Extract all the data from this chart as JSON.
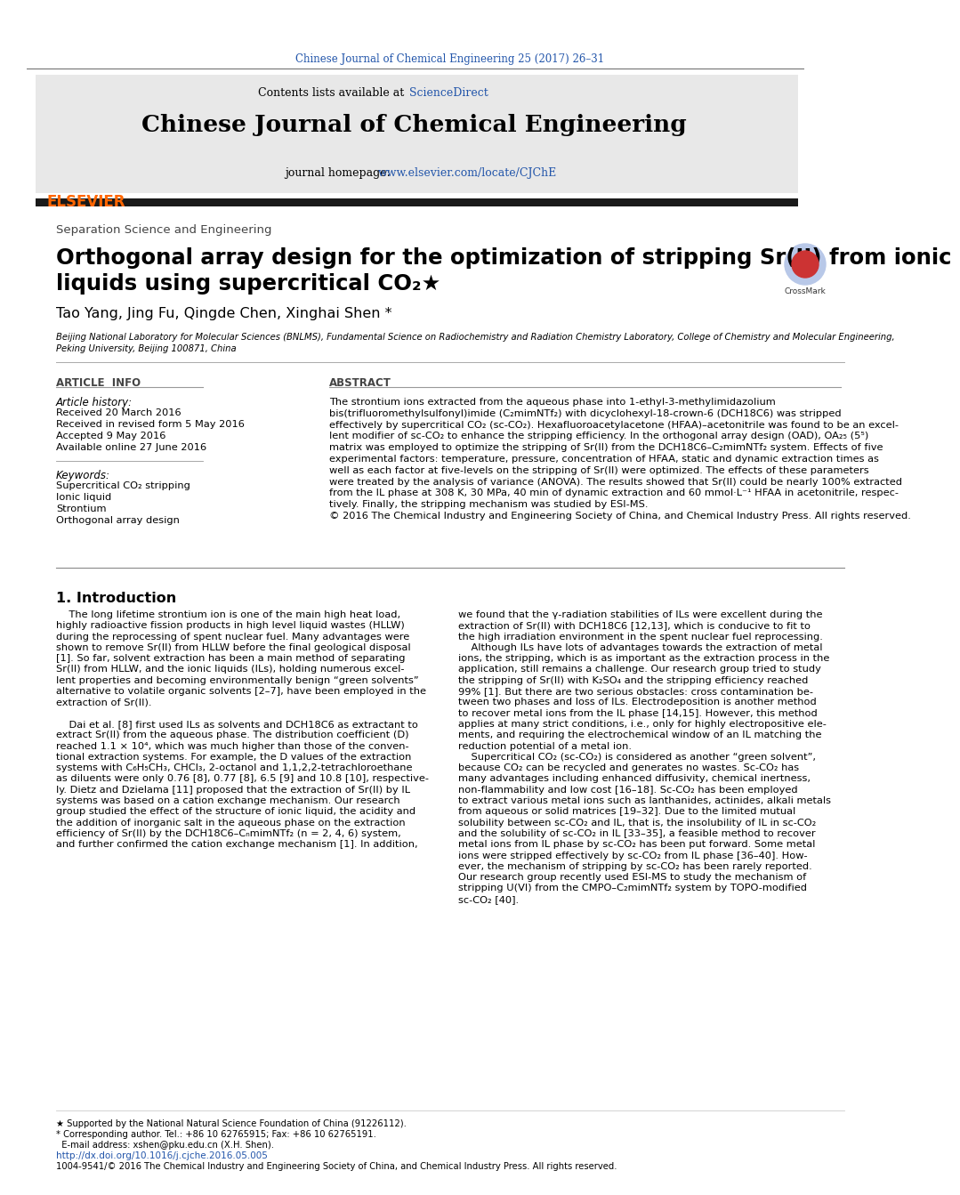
{
  "page_title_ref": "Chinese Journal of Chemical Engineering 25 (2017) 26–31",
  "journal_name": "Chinese Journal of Chemical Engineering",
  "contents_line": "Contents lists available at ",
  "sciencedirect": "ScienceDirect",
  "journal_homepage_label": "journal homepage: ",
  "journal_homepage_url": "www.elsevier.com/locate/CJChE",
  "section_label": "Separation Science and Engineering",
  "article_title_line1": "Orthogonal array design for the optimization of stripping Sr(II) from ionic",
  "article_title_line2": "liquids using supercritical CO₂★",
  "authors": "Tao Yang, Jing Fu, Qingde Chen, Xinghai Shen *",
  "affiliation1": "Beijing National Laboratory for Molecular Sciences (BNLMS), Fundamental Science on Radiochemistry and Radiation Chemistry Laboratory, College of Chemistry and Molecular Engineering,",
  "affiliation2": "Peking University, Beijing 100871, China",
  "article_info_title": "ARTICLE  INFO",
  "article_history_label": "Article history:",
  "received": "Received 20 March 2016",
  "revised": "Received in revised form 5 May 2016",
  "accepted": "Accepted 9 May 2016",
  "available": "Available online 27 June 2016",
  "keywords_label": "Keywords:",
  "keyword1": "Supercritical CO₂ stripping",
  "keyword2": "Ionic liquid",
  "keyword3": "Strontium",
  "keyword4": "Orthogonal array design",
  "abstract_title": "ABSTRACT",
  "abstract_lines": [
    "The strontium ions extracted from the aqueous phase into 1-ethyl-3-methylimidazolium",
    "bis(trifluoromethylsulfonyl)imide (C₂mimNTf₂) with dicyclohexyl-18-crown-6 (DCH18C6) was stripped",
    "effectively by supercritical CO₂ (sc-CO₂). Hexafluoroacetylacetone (HFAA)–acetonitrile was found to be an excel-",
    "lent modifier of sc-CO₂ to enhance the stripping efficiency. In the orthogonal array design (OAD), OA₂₅ (5⁵)",
    "matrix was employed to optimize the stripping of Sr(II) from the DCH18C6–C₂mimNTf₂ system. Effects of five",
    "experimental factors: temperature, pressure, concentration of HFAA, static and dynamic extraction times as",
    "well as each factor at five-levels on the stripping of Sr(II) were optimized. The effects of these parameters",
    "were treated by the analysis of variance (ANOVA). The results showed that Sr(II) could be nearly 100% extracted",
    "from the IL phase at 308 K, 30 MPa, 40 min of dynamic extraction and 60 mmol·L⁻¹ HFAA in acetonitrile, respec-",
    "tively. Finally, the stripping mechanism was studied by ESI-MS.",
    "© 2016 The Chemical Industry and Engineering Society of China, and Chemical Industry Press. All rights reserved."
  ],
  "intro_title": "1. Introduction",
  "intro_col1_lines": [
    "    The long lifetime strontium ion is one of the main high heat load,",
    "highly radioactive fission products in high level liquid wastes (HLLW)",
    "during the reprocessing of spent nuclear fuel. Many advantages were",
    "shown to remove Sr(II) from HLLW before the final geological disposal",
    "[1]. So far, solvent extraction has been a main method of separating",
    "Sr(II) from HLLW, and the ionic liquids (ILs), holding numerous excel-",
    "lent properties and becoming environmentally benign “green solvents”",
    "alternative to volatile organic solvents [2–7], have been employed in the",
    "extraction of Sr(II).",
    "",
    "    Dai et al. [8] first used ILs as solvents and DCH18C6 as extractant to",
    "extract Sr(II) from the aqueous phase. The distribution coefficient (D)",
    "reached 1.1 × 10⁴, which was much higher than those of the conven-",
    "tional extraction systems. For example, the D values of the extraction",
    "systems with C₆H₅CH₃, CHCl₃, 2-octanol and 1,1,2,2-tetrachloroethane",
    "as diluents were only 0.76 [8], 0.77 [8], 6.5 [9] and 10.8 [10], respective-",
    "ly. Dietz and Dzielama [11] proposed that the extraction of Sr(II) by IL",
    "systems was based on a cation exchange mechanism. Our research",
    "group studied the effect of the structure of ionic liquid, the acidity and",
    "the addition of inorganic salt in the aqueous phase on the extraction",
    "efficiency of Sr(II) by the DCH18C6–CₙmimNTf₂ (n = 2, 4, 6) system,",
    "and further confirmed the cation exchange mechanism [1]. In addition,"
  ],
  "intro_col2_lines": [
    "we found that the γ-radiation stabilities of ILs were excellent during the",
    "extraction of Sr(II) with DCH18C6 [12,13], which is conducive to fit to",
    "the high irradiation environment in the spent nuclear fuel reprocessing.",
    "    Although ILs have lots of advantages towards the extraction of metal",
    "ions, the stripping, which is as important as the extraction process in the",
    "application, still remains a challenge. Our research group tried to study",
    "the stripping of Sr(II) with K₂SO₄ and the stripping efficiency reached",
    "99% [1]. But there are two serious obstacles: cross contamination be-",
    "tween two phases and loss of ILs. Electrodeposition is another method",
    "to recover metal ions from the IL phase [14,15]. However, this method",
    "applies at many strict conditions, i.e., only for highly electropositive ele-",
    "ments, and requiring the electrochemical window of an IL matching the",
    "reduction potential of a metal ion.",
    "    Supercritical CO₂ (sc-CO₂) is considered as another “green solvent”,",
    "because CO₂ can be recycled and generates no wastes. Sc-CO₂ has",
    "many advantages including enhanced diffusivity, chemical inertness,",
    "non-flammability and low cost [16–18]. Sc-CO₂ has been employed",
    "to extract various metal ions such as lanthanides, actinides, alkali metals",
    "from aqueous or solid matrices [19–32]. Due to the limited mutual",
    "solubility between sc-CO₂ and IL, that is, the insolubility of IL in sc-CO₂",
    "and the solubility of sc-CO₂ in IL [33–35], a feasible method to recover",
    "metal ions from IL phase by sc-CO₂ has been put forward. Some metal",
    "ions were stripped effectively by sc-CO₂ from IL phase [36–40]. How-",
    "ever, the mechanism of stripping by sc-CO₂ has been rarely reported.",
    "Our research group recently used ESI-MS to study the mechanism of",
    "stripping U(VI) from the CMPO–C₂mimNTf₂ system by TOPO-modified",
    "sc-CO₂ [40]."
  ],
  "footer_note1": "★ Supported by the National Natural Science Foundation of China (91226112).",
  "footer_note2": "* Corresponding author. Tel.: +86 10 62765915; Fax: +86 10 62765191.",
  "footer_note3": "  E-mail address: xshen@pku.edu.cn (X.H. Shen).",
  "footer_doi": "http://dx.doi.org/10.1016/j.cjche.2016.05.005",
  "footer_rights": "1004-9541/© 2016 The Chemical Industry and Engineering Society of China, and Chemical Industry Press. All rights reserved.",
  "elsevier_text": "ELSEVIER",
  "bg_color": "#f0f0f0",
  "header_gray": "#e8e8e8",
  "black_bar": "#1a1a1a",
  "blue_color": "#2255aa",
  "orange_color": "#ff6600",
  "text_black": "#000000",
  "text_gray": "#444444",
  "line_gray": "#999999"
}
